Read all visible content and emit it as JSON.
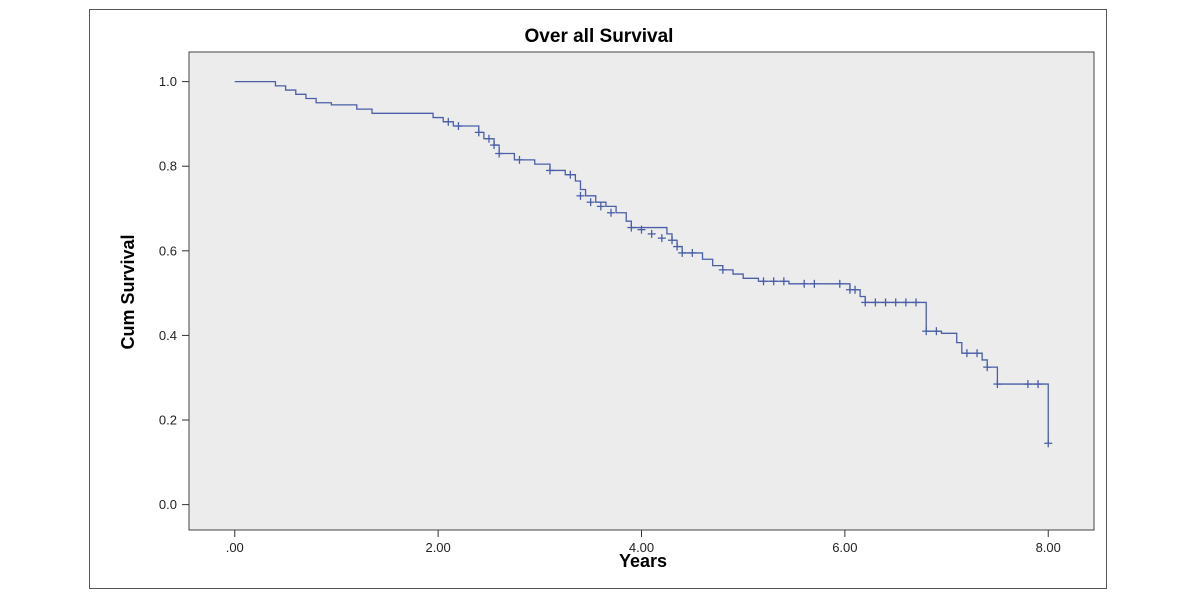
{
  "chart_data": {
    "type": "line",
    "subtype": "kaplan-meier-step",
    "title": "Over all Survival",
    "xlabel": "Years",
    "ylabel": "Cum Survival",
    "xlim": [
      -0.45,
      8.45
    ],
    "ylim": [
      -0.06,
      1.07
    ],
    "x_ticks": [
      0,
      2,
      4,
      6,
      8
    ],
    "x_tick_labels": [
      ".00",
      "2.00",
      "4.00",
      "6.00",
      "8.00"
    ],
    "y_ticks": [
      0,
      0.2,
      0.4,
      0.6,
      0.8,
      1.0
    ],
    "y_tick_labels": [
      "0.0",
      "0.2",
      "0.4",
      "0.6",
      "0.8",
      "1.0"
    ],
    "grid": false,
    "legend": "none",
    "plot_background": "#ececec",
    "line_color": "#4a5fa8",
    "series": [
      {
        "steps": [
          [
            0.0,
            1.0
          ],
          [
            0.4,
            0.99
          ],
          [
            0.5,
            0.98
          ],
          [
            0.6,
            0.97
          ],
          [
            0.7,
            0.96
          ],
          [
            0.8,
            0.95
          ],
          [
            0.95,
            0.945
          ],
          [
            1.2,
            0.935
          ],
          [
            1.35,
            0.925
          ],
          [
            1.95,
            0.915
          ],
          [
            2.05,
            0.905
          ],
          [
            2.15,
            0.895
          ],
          [
            2.4,
            0.88
          ],
          [
            2.45,
            0.865
          ],
          [
            2.55,
            0.85
          ],
          [
            2.6,
            0.83
          ],
          [
            2.75,
            0.815
          ],
          [
            2.95,
            0.805
          ],
          [
            3.1,
            0.79
          ],
          [
            3.25,
            0.78
          ],
          [
            3.35,
            0.765
          ],
          [
            3.4,
            0.745
          ],
          [
            3.45,
            0.73
          ],
          [
            3.55,
            0.715
          ],
          [
            3.65,
            0.705
          ],
          [
            3.75,
            0.69
          ],
          [
            3.85,
            0.67
          ],
          [
            3.9,
            0.655
          ],
          [
            4.25,
            0.64
          ],
          [
            4.3,
            0.625
          ],
          [
            4.35,
            0.61
          ],
          [
            4.4,
            0.595
          ],
          [
            4.6,
            0.58
          ],
          [
            4.7,
            0.565
          ],
          [
            4.8,
            0.555
          ],
          [
            4.9,
            0.545
          ],
          [
            5.0,
            0.535
          ],
          [
            5.15,
            0.528
          ],
          [
            5.45,
            0.522
          ],
          [
            6.05,
            0.508
          ],
          [
            6.15,
            0.492
          ],
          [
            6.2,
            0.478
          ],
          [
            6.8,
            0.41
          ],
          [
            6.95,
            0.405
          ],
          [
            7.1,
            0.383
          ],
          [
            7.15,
            0.358
          ],
          [
            7.35,
            0.342
          ],
          [
            7.4,
            0.325
          ],
          [
            7.5,
            0.285
          ],
          [
            8.0,
            0.145
          ]
        ],
        "end_x": 8.0,
        "censored": [
          [
            2.1,
            0.905
          ],
          [
            2.2,
            0.895
          ],
          [
            2.4,
            0.88
          ],
          [
            2.5,
            0.865
          ],
          [
            2.55,
            0.85
          ],
          [
            2.6,
            0.83
          ],
          [
            2.8,
            0.815
          ],
          [
            3.1,
            0.79
          ],
          [
            3.3,
            0.78
          ],
          [
            3.4,
            0.73
          ],
          [
            3.5,
            0.715
          ],
          [
            3.6,
            0.705
          ],
          [
            3.7,
            0.69
          ],
          [
            3.9,
            0.655
          ],
          [
            4.0,
            0.65
          ],
          [
            4.1,
            0.64
          ],
          [
            4.2,
            0.63
          ],
          [
            4.3,
            0.625
          ],
          [
            4.35,
            0.61
          ],
          [
            4.4,
            0.595
          ],
          [
            4.5,
            0.595
          ],
          [
            4.8,
            0.555
          ],
          [
            5.2,
            0.528
          ],
          [
            5.3,
            0.528
          ],
          [
            5.4,
            0.528
          ],
          [
            5.6,
            0.522
          ],
          [
            5.7,
            0.522
          ],
          [
            5.95,
            0.522
          ],
          [
            6.05,
            0.508
          ],
          [
            6.1,
            0.508
          ],
          [
            6.2,
            0.478
          ],
          [
            6.3,
            0.478
          ],
          [
            6.4,
            0.478
          ],
          [
            6.5,
            0.478
          ],
          [
            6.6,
            0.478
          ],
          [
            6.7,
            0.478
          ],
          [
            6.8,
            0.41
          ],
          [
            6.9,
            0.41
          ],
          [
            7.2,
            0.358
          ],
          [
            7.3,
            0.358
          ],
          [
            7.4,
            0.325
          ],
          [
            7.5,
            0.285
          ],
          [
            7.8,
            0.285
          ],
          [
            7.9,
            0.285
          ],
          [
            8.0,
            0.145
          ]
        ]
      }
    ]
  }
}
